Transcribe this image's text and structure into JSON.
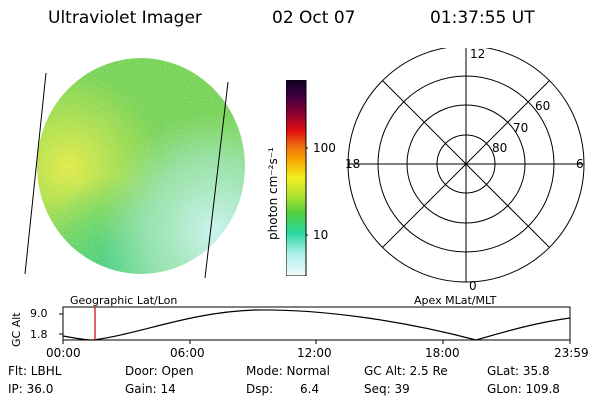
{
  "header": {
    "instrument": "Ultraviolet Imager",
    "date": "02 Oct 07",
    "time": "01:37:55 UT"
  },
  "colorbar": {
    "label": "photon cm⁻²s⁻¹",
    "ticks": [
      "100",
      "10"
    ]
  },
  "polar_plot": {
    "mlt_labels": [
      "12",
      "18",
      "6",
      "0"
    ],
    "lat_labels": [
      "60",
      "70",
      "80"
    ]
  },
  "timeline": {
    "left_title": "Geographic Lat/Lon",
    "right_title": "Apex MLat/MLT",
    "ylabel": "GC Alt",
    "y_ticks": [
      "9.0",
      "1.8"
    ],
    "x_ticks": [
      "00:00",
      "06:00",
      "12:00",
      "18:00",
      "23:59"
    ]
  },
  "status": {
    "filter": "Flt: LBHL",
    "door": "Door: Open",
    "mode": "Mode: Normal",
    "gc_alt": "GC Alt: 2.5 Re",
    "glat": "GLat:  35.8",
    "ip": "IP: 36.0",
    "gain": "Gain: 14",
    "dsp_label": "Dsp:",
    "dsp_value": "6.4",
    "seq": "Seq: 39",
    "glon": "GLon: 109.8"
  },
  "colors": {
    "marker": "#cc0000",
    "image_green": "#6ad13c",
    "image_yellow": "#d8e826",
    "image_cyan": "#bfeee9"
  }
}
